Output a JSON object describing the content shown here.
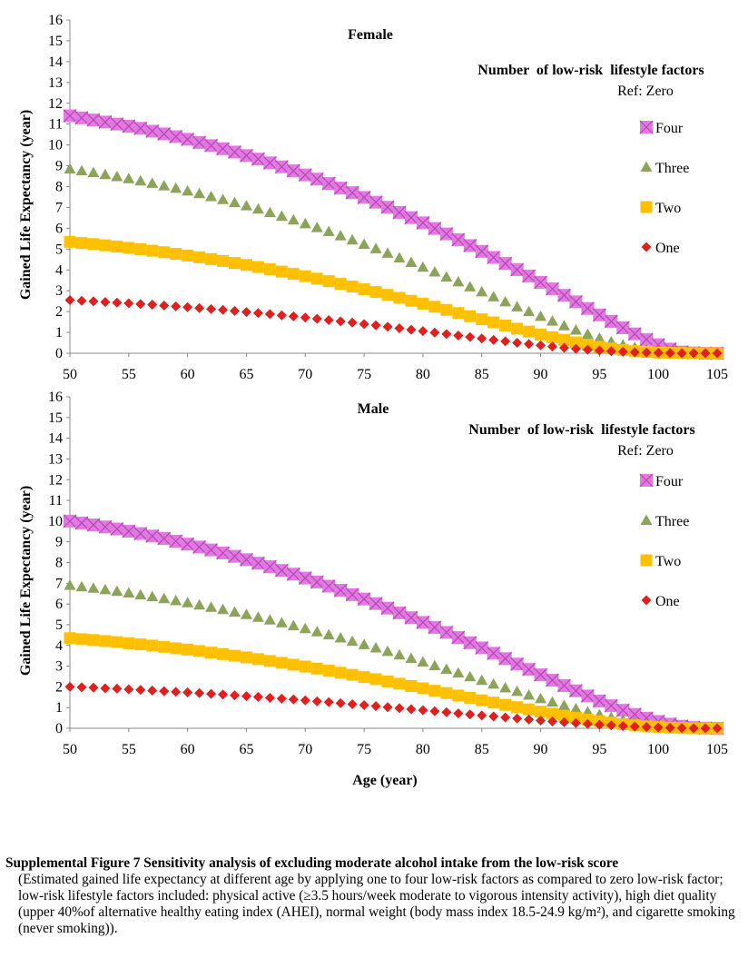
{
  "figure": {
    "xlabel": "Age (year)",
    "ylabel": "Gained Life Expectancy (year)"
  },
  "chart_data": [
    {
      "type": "scatter",
      "title": "Female",
      "legend_title": "Number  of low-risk  lifestyle factors",
      "legend_ref": "Ref: Zero",
      "legend_position": "right",
      "xlabel": "",
      "ylabel": "Gained Life Expectancy (year)",
      "xlim": [
        50,
        105
      ],
      "ylim": [
        0,
        16
      ],
      "xticks": [
        50,
        55,
        60,
        65,
        70,
        75,
        80,
        85,
        90,
        95,
        100,
        105
      ],
      "yticks": [
        0,
        1,
        2,
        3,
        4,
        5,
        6,
        7,
        8,
        9,
        10,
        11,
        12,
        13,
        14,
        15,
        16
      ],
      "x": [
        50,
        51,
        52,
        53,
        54,
        55,
        56,
        57,
        58,
        59,
        60,
        61,
        62,
        63,
        64,
        65,
        66,
        67,
        68,
        69,
        70,
        71,
        72,
        73,
        74,
        75,
        76,
        77,
        78,
        79,
        80,
        81,
        82,
        83,
        84,
        85,
        86,
        87,
        88,
        89,
        90,
        91,
        92,
        93,
        94,
        95,
        96,
        97,
        98,
        99,
        100,
        101,
        102,
        103,
        104,
        105
      ],
      "series": [
        {
          "name": "Four",
          "marker": "square-x",
          "color": "#e07ae0",
          "values": [
            11.4,
            11.3,
            11.2,
            11.1,
            11.0,
            10.9,
            10.8,
            10.66,
            10.53,
            10.4,
            10.27,
            10.12,
            9.97,
            9.82,
            9.66,
            9.49,
            9.32,
            9.14,
            8.95,
            8.76,
            8.56,
            8.36,
            8.15,
            7.93,
            7.71,
            7.48,
            7.25,
            7.01,
            6.76,
            6.51,
            6.26,
            5.99,
            5.73,
            5.45,
            5.17,
            4.89,
            4.6,
            4.31,
            4.01,
            3.71,
            3.4,
            3.09,
            2.78,
            2.47,
            2.15,
            1.84,
            1.53,
            1.22,
            0.93,
            0.66,
            0.41,
            0.2,
            0.06,
            0.02,
            0.0,
            0.0
          ]
        },
        {
          "name": "Three",
          "marker": "triangle",
          "color": "#8ca45a",
          "values": [
            8.85,
            8.76,
            8.67,
            8.58,
            8.48,
            8.38,
            8.27,
            8.16,
            8.04,
            7.92,
            7.79,
            7.66,
            7.52,
            7.38,
            7.23,
            7.08,
            6.92,
            6.75,
            6.58,
            6.4,
            6.22,
            6.03,
            5.84,
            5.64,
            5.44,
            5.23,
            5.02,
            4.8,
            4.58,
            4.36,
            4.13,
            3.9,
            3.66,
            3.43,
            3.19,
            2.95,
            2.71,
            2.47,
            2.23,
            2.0,
            1.77,
            1.54,
            1.32,
            1.11,
            0.91,
            0.72,
            0.55,
            0.4,
            0.27,
            0.17,
            0.1,
            0.05,
            0.02,
            0.01,
            0.0,
            0.0
          ]
        },
        {
          "name": "Two",
          "marker": "square",
          "color": "#ffc000",
          "values": [
            5.35,
            5.29,
            5.24,
            5.18,
            5.12,
            5.06,
            4.99,
            4.92,
            4.85,
            4.77,
            4.69,
            4.61,
            4.52,
            4.43,
            4.33,
            4.24,
            4.14,
            4.03,
            3.92,
            3.81,
            3.7,
            3.58,
            3.46,
            3.33,
            3.2,
            3.07,
            2.94,
            2.8,
            2.66,
            2.52,
            2.38,
            2.23,
            2.08,
            1.93,
            1.78,
            1.63,
            1.48,
            1.33,
            1.18,
            1.04,
            0.9,
            0.77,
            0.64,
            0.52,
            0.41,
            0.31,
            0.23,
            0.16,
            0.1,
            0.06,
            0.03,
            0.02,
            0.01,
            0.0,
            0.0,
            0.0
          ]
        },
        {
          "name": "One",
          "marker": "diamond",
          "color": "#e0201e",
          "values": [
            2.55,
            2.52,
            2.49,
            2.46,
            2.43,
            2.4,
            2.36,
            2.33,
            2.29,
            2.25,
            2.21,
            2.17,
            2.12,
            2.08,
            2.03,
            1.98,
            1.93,
            1.88,
            1.82,
            1.77,
            1.71,
            1.65,
            1.59,
            1.53,
            1.47,
            1.4,
            1.34,
            1.27,
            1.2,
            1.13,
            1.06,
            0.99,
            0.92,
            0.85,
            0.78,
            0.71,
            0.64,
            0.57,
            0.5,
            0.44,
            0.38,
            0.32,
            0.26,
            0.21,
            0.17,
            0.13,
            0.1,
            0.07,
            0.05,
            0.03,
            0.02,
            0.01,
            0.0,
            0.0,
            0.0,
            0.0
          ]
        }
      ]
    },
    {
      "type": "scatter",
      "title": "Male",
      "legend_title": "Number  of low-risk  lifestyle factors",
      "legend_ref": "Ref: Zero",
      "legend_position": "right",
      "xlabel": "Age (year)",
      "ylabel": "Gained Life Expectancy (year)",
      "xlim": [
        50,
        105
      ],
      "ylim": [
        0,
        16
      ],
      "xticks": [
        50,
        55,
        60,
        65,
        70,
        75,
        80,
        85,
        90,
        95,
        100,
        105
      ],
      "yticks": [
        0,
        1,
        2,
        3,
        4,
        5,
        6,
        7,
        8,
        9,
        10,
        11,
        12,
        13,
        14,
        15,
        16
      ],
      "x": [
        50,
        51,
        52,
        53,
        54,
        55,
        56,
        57,
        58,
        59,
        60,
        61,
        62,
        63,
        64,
        65,
        66,
        67,
        68,
        69,
        70,
        71,
        72,
        73,
        74,
        75,
        76,
        77,
        78,
        79,
        80,
        81,
        82,
        83,
        84,
        85,
        86,
        87,
        88,
        89,
        90,
        91,
        92,
        93,
        94,
        95,
        96,
        97,
        98,
        99,
        100,
        101,
        102,
        103,
        104,
        105
      ],
      "series": [
        {
          "name": "Four",
          "marker": "square-x",
          "color": "#e07ae0",
          "values": [
            10.0,
            9.91,
            9.82,
            9.72,
            9.62,
            9.51,
            9.4,
            9.28,
            9.16,
            9.03,
            8.89,
            8.75,
            8.61,
            8.46,
            8.3,
            8.14,
            7.97,
            7.8,
            7.62,
            7.44,
            7.25,
            7.06,
            6.86,
            6.66,
            6.45,
            6.24,
            6.02,
            5.8,
            5.57,
            5.34,
            5.11,
            4.87,
            4.63,
            4.38,
            4.13,
            3.88,
            3.62,
            3.36,
            3.1,
            2.84,
            2.58,
            2.32,
            2.06,
            1.81,
            1.56,
            1.32,
            1.09,
            0.87,
            0.67,
            0.49,
            0.33,
            0.2,
            0.1,
            0.04,
            0.01,
            0.0
          ]
        },
        {
          "name": "Three",
          "marker": "triangle",
          "color": "#8ca45a",
          "values": [
            6.9,
            6.83,
            6.76,
            6.69,
            6.61,
            6.53,
            6.44,
            6.35,
            6.26,
            6.16,
            6.06,
            5.95,
            5.84,
            5.73,
            5.61,
            5.49,
            5.36,
            5.23,
            5.09,
            4.95,
            4.81,
            4.66,
            4.51,
            4.36,
            4.2,
            4.04,
            3.88,
            3.71,
            3.54,
            3.37,
            3.2,
            3.02,
            2.85,
            2.67,
            2.49,
            2.31,
            2.13,
            1.95,
            1.78,
            1.6,
            1.43,
            1.26,
            1.1,
            0.94,
            0.79,
            0.65,
            0.52,
            0.4,
            0.29,
            0.2,
            0.13,
            0.07,
            0.03,
            0.01,
            0.0,
            0.0
          ]
        },
        {
          "name": "Two",
          "marker": "square",
          "color": "#ffc000",
          "values": [
            4.35,
            4.3,
            4.26,
            4.21,
            4.16,
            4.1,
            4.05,
            3.99,
            3.93,
            3.86,
            3.8,
            3.73,
            3.65,
            3.58,
            3.5,
            3.42,
            3.34,
            3.25,
            3.16,
            3.07,
            2.98,
            2.88,
            2.78,
            2.68,
            2.58,
            2.47,
            2.37,
            2.26,
            2.15,
            2.04,
            1.93,
            1.81,
            1.7,
            1.58,
            1.47,
            1.35,
            1.24,
            1.13,
            1.02,
            0.91,
            0.8,
            0.7,
            0.6,
            0.51,
            0.42,
            0.34,
            0.27,
            0.2,
            0.14,
            0.09,
            0.06,
            0.03,
            0.01,
            0.0,
            0.0,
            0.0
          ]
        },
        {
          "name": "One",
          "marker": "diamond",
          "color": "#e0201e",
          "values": [
            2.0,
            1.98,
            1.96,
            1.93,
            1.91,
            1.88,
            1.85,
            1.82,
            1.79,
            1.76,
            1.73,
            1.7,
            1.66,
            1.63,
            1.59,
            1.55,
            1.51,
            1.47,
            1.43,
            1.39,
            1.35,
            1.3,
            1.26,
            1.21,
            1.16,
            1.12,
            1.07,
            1.02,
            0.97,
            0.92,
            0.87,
            0.82,
            0.77,
            0.72,
            0.67,
            0.62,
            0.57,
            0.52,
            0.47,
            0.42,
            0.37,
            0.33,
            0.29,
            0.25,
            0.21,
            0.17,
            0.14,
            0.11,
            0.08,
            0.06,
            0.04,
            0.02,
            0.01,
            0.0,
            0.0,
            0.0
          ]
        }
      ]
    }
  ],
  "caption": {
    "title": "Supplemental Figure 7 Sensitivity analysis of excluding moderate alcohol intake from the low-risk score",
    "body": "(Estimated gained life expectancy at different age by applying one to four low-risk factors as compared to zero low-risk factor; low-risk lifestyle factors included: physical active (≥3.5 hours/week moderate to vigorous intensity activity), high diet quality (upper 40%of alternative healthy eating index (AHEI), normal weight (body mass index 18.5-24.9 kg/m²), and cigarette smoking (never smoking))."
  }
}
